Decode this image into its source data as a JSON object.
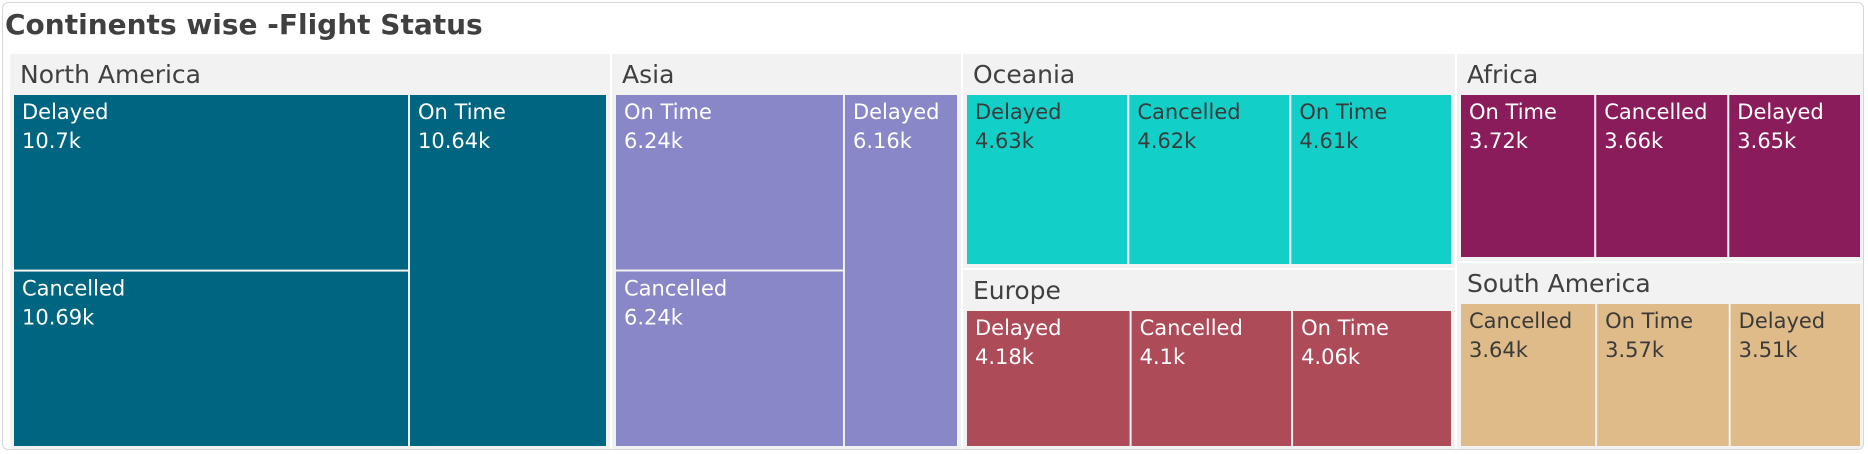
{
  "chart_data": {
    "type": "treemap",
    "title": "Continents wise -Flight Status",
    "groups": [
      {
        "name": "North America",
        "color": "#006580",
        "text_color": "#ffffff",
        "children": [
          {
            "name": "Delayed",
            "label": "10.7k",
            "value": 10700
          },
          {
            "name": "Cancelled",
            "label": "10.69k",
            "value": 10690
          },
          {
            "name": "On Time",
            "label": "10.64k",
            "value": 10640
          }
        ]
      },
      {
        "name": "Asia",
        "color": "#8a87c8",
        "text_color": "#ffffff",
        "children": [
          {
            "name": "On Time",
            "label": "6.24k",
            "value": 6240
          },
          {
            "name": "Cancelled",
            "label": "6.24k",
            "value": 6240
          },
          {
            "name": "Delayed",
            "label": "6.16k",
            "value": 6160
          }
        ]
      },
      {
        "name": "Oceania",
        "color": "#12cfc8",
        "text_color": "#3a3a3a",
        "children": [
          {
            "name": "Delayed",
            "label": "4.63k",
            "value": 4630
          },
          {
            "name": "Cancelled",
            "label": "4.62k",
            "value": 4620
          },
          {
            "name": "On Time",
            "label": "4.61k",
            "value": 4610
          }
        ]
      },
      {
        "name": "Europe",
        "color": "#ad4c58",
        "text_color": "#ffffff",
        "children": [
          {
            "name": "Delayed",
            "label": "4.18k",
            "value": 4180
          },
          {
            "name": "Cancelled",
            "label": "4.1k",
            "value": 4100
          },
          {
            "name": "On Time",
            "label": "4.06k",
            "value": 4060
          }
        ]
      },
      {
        "name": "Africa",
        "color": "#8b1c5b",
        "text_color": "#ffffff",
        "children": [
          {
            "name": "On Time",
            "label": "3.72k",
            "value": 3720
          },
          {
            "name": "Cancelled",
            "label": "3.66k",
            "value": 3660
          },
          {
            "name": "Delayed",
            "label": "3.65k",
            "value": 3650
          }
        ]
      },
      {
        "name": "South America",
        "color": "#debb88",
        "text_color": "#3a3a3a",
        "children": [
          {
            "name": "Cancelled",
            "label": "3.64k",
            "value": 3640
          },
          {
            "name": "On Time",
            "label": "3.57k",
            "value": 3570
          },
          {
            "name": "Delayed",
            "label": "3.51k",
            "value": 3510
          }
        ]
      }
    ]
  }
}
